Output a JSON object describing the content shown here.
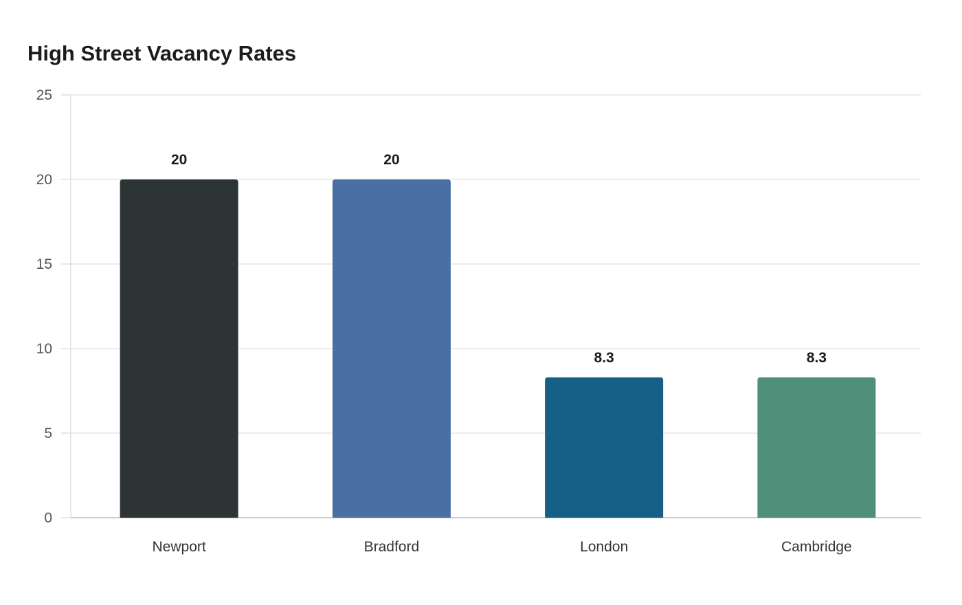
{
  "chart_data": {
    "type": "bar",
    "title": "High Street Vacancy Rates",
    "xlabel": "",
    "ylabel": "",
    "categories": [
      "Newport",
      "Bradford",
      "London",
      "Cambridge"
    ],
    "values": [
      20,
      20,
      8.3,
      8.3
    ],
    "data_labels": [
      "20",
      "20",
      "8.3",
      "8.3"
    ],
    "colors": [
      "#2d3436",
      "#4a6fa5",
      "#166088",
      "#4f8f7a"
    ],
    "ylim": [
      0,
      25
    ],
    "yticks": [
      0,
      5,
      10,
      15,
      20,
      25
    ],
    "grid": true,
    "legend": "none"
  }
}
